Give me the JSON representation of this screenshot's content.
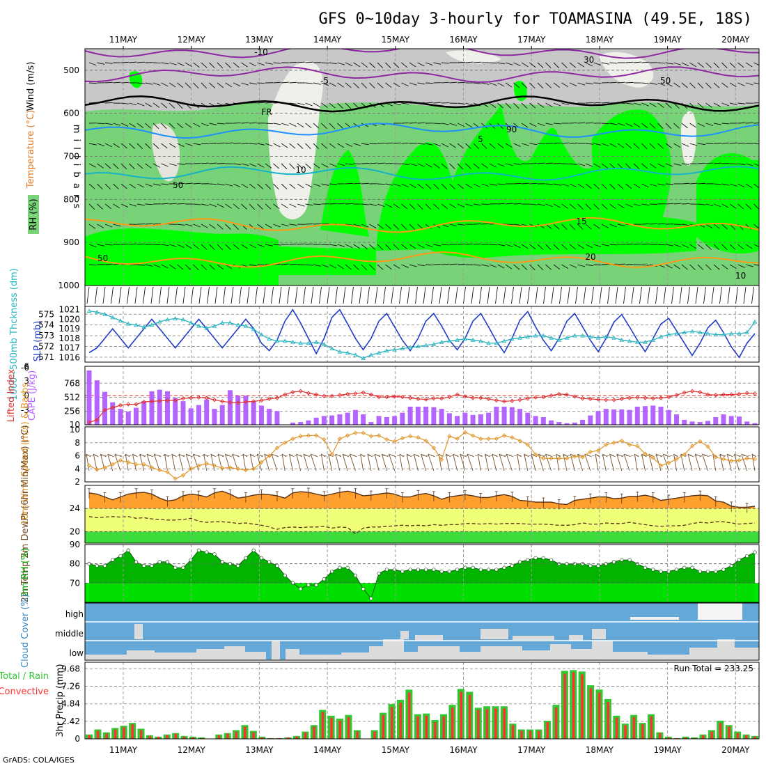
{
  "title": "GFS 0~10day 3-hourly for TOAMASINA (49.5E, 18S)",
  "footer": "GrADS: COLA/IGES",
  "colors": {
    "rh_dark": "#00ff00",
    "rh_mid": "#78d278",
    "rh_light": "#c8c8c8",
    "rh_white": "#f0f0ea",
    "temp_cold": "#8c28a0",
    "temp_freeze": "#000000",
    "temp_blue": "#1e90ff",
    "temp_cyan": "#14b4c8",
    "temp_warm": "#ff9a14",
    "slp": "#1e3cc8",
    "thickness": "#28b4c0",
    "lifted": "#e03232",
    "cape": "#b464ff",
    "wind_speed": "#e09628",
    "barbs": "#785028",
    "temp_fill": "#ff9f2d",
    "dew_fill": "#f0ff78",
    "low_fill": "#3cdc3c",
    "rh2m_dark": "#00b400",
    "rh2m_light": "#00e600",
    "cloud": "#64a8d8",
    "cloud_clear": "#dcdcdc",
    "rain_total": "#32c832",
    "rain_conv": "#ff3232"
  },
  "chart_data": [
    {
      "type": "heatmap",
      "ylabel": "m i l l i b a r s",
      "legend": [
        "RH (%)",
        "Temperature (°C)",
        "Wind (m/s)"
      ],
      "yticks": [
        500,
        600,
        700,
        800,
        900,
        1000
      ],
      "ylim": [
        1000,
        450
      ],
      "x_labels": [
        "11MAY",
        "12MAY",
        "13MAY",
        "14MAY",
        "15MAY",
        "16MAY",
        "17MAY",
        "18MAY",
        "19MAY",
        "20MAY"
      ],
      "rh_labels": [
        "50",
        "50",
        "90",
        "30",
        "50",
        "10"
      ],
      "isotherms": [
        {
          "name": "-10",
          "level": 455
        },
        {
          "name": "-5",
          "level": 510
        },
        {
          "name": "FR",
          "level": 578
        },
        {
          "name": "5",
          "level": 640
        },
        {
          "name": "10",
          "level": 740
        },
        {
          "name": "15",
          "level": 860
        },
        {
          "name": "20",
          "level": 940
        }
      ]
    },
    {
      "type": "line",
      "ylabel_left": "1000~500mb Thckness (dm)",
      "ylabel_right": "SLP (mb)",
      "thickness_ticks": [
        571,
        572,
        573,
        574,
        575
      ],
      "slp_ticks": [
        1016,
        1017,
        1018,
        1019,
        1020,
        1021
      ],
      "series": [
        {
          "name": "SLP (mb)",
          "values": [
            1016.5,
            1017,
            1018,
            1019,
            1018,
            1017,
            1018,
            1019,
            1020,
            1019,
            1018,
            1017,
            1018,
            1019,
            1020,
            1019,
            1018,
            1017,
            1018,
            1019,
            1020,
            1019,
            1017.5,
            1016.7,
            1017.8,
            1019.8,
            1021,
            1019.6,
            1018,
            1016.4,
            1018,
            1020.2,
            1021,
            1019.5,
            1018,
            1016.8,
            1018,
            1019.8,
            1020.6,
            1019.2,
            1017.8,
            1016.7,
            1018,
            1019.8,
            1020.6,
            1019.3,
            1017.8,
            1016.8,
            1018,
            1019.8,
            1020.6,
            1019.2,
            1017.7,
            1016.5,
            1018,
            1019.9,
            1020.8,
            1019.2,
            1017.8,
            1016.7,
            1018,
            1019.8,
            1020.6,
            1019.2,
            1017.8,
            1016.6,
            1018,
            1019.7,
            1020.5,
            1019.2,
            1017.8,
            1016.6,
            1018,
            1019.5,
            1020.1,
            1018.8,
            1017.5,
            1016.2,
            1017.5,
            1019.1,
            1019.9,
            1018.6,
            1017.1,
            1016,
            1017.5,
            1018.5
          ]
        },
        {
          "name": "Thickness (dm)",
          "values": [
            575.3,
            575.2,
            575,
            574.7,
            574.4,
            574.1,
            574,
            573.8,
            574,
            574.3,
            574.5,
            574.6,
            574.5,
            574.2,
            573.9,
            573.7,
            573.9,
            574.2,
            574.2,
            574,
            573.9,
            573.6,
            573.1,
            572.7,
            572.5,
            572.5,
            572.4,
            572.3,
            572.3,
            572.4,
            572.2,
            571.8,
            571.5,
            571.4,
            571.2,
            570.9,
            571.2,
            571.4,
            571.6,
            571.7,
            571.8,
            571.9,
            572,
            572.1,
            572.2,
            572.4,
            572.5,
            572.6,
            572.7,
            572.6,
            572.5,
            572.3,
            572.3,
            572.5,
            572.7,
            572.8,
            572.9,
            573,
            573,
            572.8,
            572.6,
            572.8,
            573,
            573,
            572.9,
            572.8,
            572.9,
            572.8,
            572.6,
            572.5,
            572.4,
            572.4,
            572.6,
            572.9,
            573.1,
            573.2,
            573.3,
            573.4,
            573.3,
            573.2,
            573.1,
            573.1,
            573.2,
            573.2,
            573.3,
            574.3
          ]
        }
      ]
    },
    {
      "type": "bar",
      "ylabel_left": "Lifted Index",
      "ylabel_right": "CAPE (J/kg)",
      "lifted_ticks": [
        -3,
        0,
        3,
        6
      ],
      "lifted_top_tick": "-6",
      "cape_ticks": [
        10,
        256,
        512,
        768
      ],
      "series": [
        {
          "name": "CAPE (J/kg)",
          "values": [
            1000,
            820,
            610,
            420,
            300,
            250,
            320,
            440,
            620,
            650,
            620,
            500,
            440,
            310,
            370,
            470,
            300,
            370,
            640,
            540,
            540,
            440,
            360,
            300,
            260,
            10,
            50,
            60,
            90,
            140,
            170,
            180,
            200,
            230,
            280,
            200,
            60,
            170,
            150,
            170,
            230,
            340,
            340,
            340,
            330,
            300,
            220,
            170,
            230,
            190,
            200,
            230,
            340,
            340,
            330,
            300,
            230,
            170,
            150,
            90,
            60,
            40,
            50,
            100,
            180,
            260,
            300,
            290,
            290,
            280,
            340,
            350,
            360,
            340,
            280,
            200,
            100,
            70,
            60,
            80,
            150,
            200,
            170,
            160,
            70,
            40
          ]
        },
        {
          "name": "Lifted Index",
          "values": [
            -5.5,
            -5,
            -3,
            -2.5,
            -2,
            -1.8,
            -1.8,
            -1.3,
            -1.2,
            -1.1,
            -1,
            -1,
            -0.6,
            -0.5,
            -0.4,
            -0.5,
            -0.9,
            -1.2,
            -1.4,
            -1.5,
            -1.3,
            -1.2,
            -1,
            -0.7,
            -0.5,
            0.2,
            0.7,
            0.9,
            0.5,
            0.2,
            -0.1,
            -0.1,
            0.1,
            0.3,
            0.4,
            0.6,
            0.2,
            -0.3,
            -0.3,
            -0.2,
            -0.3,
            -0.5,
            -0.7,
            -0.8,
            -0.6,
            -0.6,
            -0.3,
            0.2,
            -0.2,
            -0.5,
            -0.5,
            -0.7,
            -1,
            -1.2,
            -1.1,
            -0.9,
            -0.6,
            -0.4,
            -0.3,
            0,
            0.3,
            0.2,
            -0.2,
            -0.6,
            -0.7,
            -0.8,
            -0.9,
            -0.9,
            -0.7,
            -0.5,
            -0.4,
            -0.5,
            -0.6,
            -0.5,
            -0.3,
            0.1,
            0.6,
            0.9,
            0.7,
            0.2,
            0.1,
            0.2,
            0.2,
            0.3,
            0.5,
            0.4
          ]
        }
      ]
    },
    {
      "type": "line",
      "ylabel": "10m Wind Speed (m/s) & Barbs",
      "ylim": [
        2,
        10
      ],
      "yticks": [
        2,
        4,
        6,
        8,
        10
      ],
      "series": [
        {
          "name": "10m Wind Speed",
          "values": [
            4.5,
            3.9,
            4.2,
            4.7,
            5.3,
            5,
            4.7,
            4.7,
            4.2,
            3.8,
            3.5,
            2.5,
            3,
            4,
            4.5,
            4.8,
            4.5,
            4.1,
            4.2,
            4,
            3.8,
            4,
            5,
            6,
            7.2,
            8,
            8.6,
            9,
            9.1,
            9.1,
            8.5,
            6.2,
            8.6,
            9.1,
            9.5,
            9.5,
            9,
            9.1,
            8.5,
            8.2,
            8.7,
            9,
            8.8,
            8.3,
            7.2,
            5.4,
            9,
            8.6,
            9.6,
            9.1,
            8.6,
            8.6,
            8.6,
            9.1,
            8.8,
            8.3,
            7.7,
            6.2,
            5.6,
            5.6,
            5.6,
            5.6,
            5.9,
            5.8,
            6.6,
            6.8,
            7.7,
            8,
            8.3,
            7.7,
            7.5,
            6.3,
            5.7,
            4.5,
            4.9,
            5.5,
            6.2,
            7.5,
            8.2,
            7.4,
            5.8,
            5.5,
            5.2,
            5.3,
            5.6,
            5.5
          ]
        }
      ]
    },
    {
      "type": "area",
      "ylabel": "2m Temp 2m DewPt (6hr Min/Max) (°C)",
      "ylim": [
        18,
        28
      ],
      "yticks": [
        20,
        24
      ],
      "series": [
        {
          "name": "2m Temp",
          "values": [
            26.7,
            26.5,
            26,
            25.5,
            26,
            26.5,
            26.7,
            26.8,
            26.5,
            25.8,
            25.3,
            25.5,
            26.2,
            26.5,
            26.3,
            26,
            26.7,
            27,
            26.5,
            25.8,
            26,
            26.3,
            26.5,
            26.4,
            26.2,
            25.8,
            26.7,
            26.9,
            26.8,
            26.5,
            26.2,
            26.5,
            26.8,
            27,
            26.7,
            26.2,
            26.3,
            26.5,
            26.7,
            26.5,
            26,
            26,
            26.4,
            26.6,
            26.2,
            25.6,
            26,
            26.2,
            26.4,
            26.2,
            25.9,
            25.9,
            26.2,
            26.4,
            26.1,
            25.4,
            25.3,
            25.1,
            25.1,
            25.1,
            24.8,
            24.7,
            25.4,
            25.6,
            25.8,
            26,
            26,
            25.7,
            25.8,
            26.1,
            26.1,
            26.3,
            26,
            25.4,
            25.6,
            25.8,
            26,
            26.2,
            26.3,
            26.2,
            25.3,
            25.1,
            24.4,
            24.2,
            24.2,
            24.4
          ]
        },
        {
          "name": "2m DewPt",
          "values": [
            22.6,
            22.4,
            22.5,
            22.6,
            22.5,
            22.6,
            22.3,
            22.4,
            22.2,
            22.1,
            22,
            22,
            22.1,
            22.3,
            21.8,
            21.6,
            21.7,
            21.7,
            21.6,
            21.4,
            21.5,
            21.3,
            21.1,
            20.8,
            20.4,
            20.7,
            20.8,
            20.7,
            20.8,
            20.8,
            20.9,
            20.6,
            20.8,
            20.7,
            19.6,
            20.6,
            20.8,
            20.8,
            20.9,
            21,
            21.1,
            21,
            21.1,
            21,
            21.2,
            21.1,
            21.2,
            21.2,
            21.4,
            21.4,
            21.3,
            21.4,
            21.3,
            21.4,
            21.4,
            21.4,
            21.3,
            21.3,
            21.3,
            21.2,
            21.1,
            21.1,
            21.2,
            21.5,
            21.3,
            21.3,
            21.5,
            21.4,
            21.4,
            21.6,
            21.4,
            21.2,
            21,
            20.9,
            21,
            21,
            21.1,
            21.4,
            21.6,
            21.5,
            21.7,
            21.7,
            21.5,
            21.3,
            21.4,
            21.5
          ]
        }
      ]
    },
    {
      "type": "area",
      "ylabel": "2m RH (%)",
      "ylim": [
        60,
        90
      ],
      "yticks": [
        70,
        80,
        90
      ],
      "series": [
        {
          "name": "2m RH",
          "values": [
            80,
            79,
            79,
            82,
            84,
            87,
            81,
            79,
            79,
            81,
            81,
            78,
            78,
            82,
            87,
            86,
            85,
            81,
            80,
            79,
            83,
            87,
            83,
            81,
            79,
            74,
            70,
            67,
            69,
            69,
            72,
            76,
            78,
            78,
            74,
            67,
            62,
            75,
            77,
            77,
            76,
            77,
            77,
            77,
            77,
            76,
            76,
            77,
            78,
            78,
            77,
            77,
            77,
            78,
            79,
            81,
            82,
            83,
            83,
            82,
            80,
            80,
            80,
            80,
            79,
            79,
            80,
            81,
            82,
            82,
            80,
            78,
            77,
            76,
            76,
            77,
            78,
            78,
            76,
            76,
            76,
            77,
            79,
            82,
            84,
            86
          ]
        }
      ]
    },
    {
      "type": "area",
      "ylabel": "Cloud Cover (%)",
      "layers": [
        "high",
        "middle",
        "low"
      ]
    },
    {
      "type": "bar",
      "ylabel": "3hr Precip (mm)",
      "legend": [
        "Total / Rain",
        "Convective"
      ],
      "run_total_label": "Run Total = 233.25",
      "yticks": [
        0,
        2.42,
        4.84,
        7.26,
        9.68
      ],
      "ylim": [
        0,
        10.2
      ],
      "series": [
        {
          "name": "Total",
          "values": [
            0.6,
            1.3,
            0.9,
            1.5,
            1.8,
            2.2,
            1.4,
            0.5,
            0.3,
            0.6,
            0.8,
            0.4,
            0.3,
            0.2,
            0,
            0.6,
            0.8,
            1.2,
            1.9,
            1.1,
            0.3,
            0.1,
            0.1,
            0.2,
            0.4,
            1,
            1.9,
            4,
            3.2,
            2.8,
            3.3,
            1.2,
            0,
            1.2,
            3.6,
            4.8,
            5.4,
            6.8,
            3.4,
            3.5,
            2.6,
            3.4,
            4.7,
            6.9,
            6.5,
            4.3,
            4.5,
            4.5,
            4.5,
            2.1,
            1.3,
            1.3,
            1.3,
            2.5,
            4.7,
            9.4,
            9.5,
            9.3,
            7.4,
            6.8,
            5.5,
            3.2,
            2.1,
            3.3,
            2.2,
            3.4,
            0.9,
            0.3,
            0.1,
            0.3,
            0.2,
            0.6,
            1.2,
            2.5,
            1.9,
            1,
            0.6,
            0.4
          ]
        },
        {
          "name": "Convective",
          "values": [
            0.5,
            1.1,
            0.7,
            1.3,
            1.6,
            2,
            1.2,
            0.4,
            0.3,
            0.5,
            0.7,
            0.3,
            0.2,
            0.1,
            0,
            0.5,
            0.7,
            1,
            1.7,
            0.9,
            0.2,
            0.1,
            0.1,
            0.2,
            0.3,
            0.9,
            1.7,
            3.7,
            2.9,
            2.5,
            3,
            1,
            0,
            1,
            3.3,
            4.4,
            5,
            6.4,
            3.1,
            3.2,
            2.3,
            3.1,
            4.3,
            6.5,
            6.1,
            4,
            4.1,
            4.2,
            4.2,
            1.9,
            1.1,
            1.1,
            1.1,
            2.3,
            4.3,
            9,
            9.2,
            8.9,
            7,
            6.4,
            5.1,
            2.9,
            1.9,
            3,
            2,
            3.1,
            0.8,
            0.2,
            0.1,
            0.2,
            0.1,
            0.5,
            1,
            2.2,
            1.7,
            0.8,
            0.5,
            0.3
          ]
        }
      ]
    }
  ]
}
